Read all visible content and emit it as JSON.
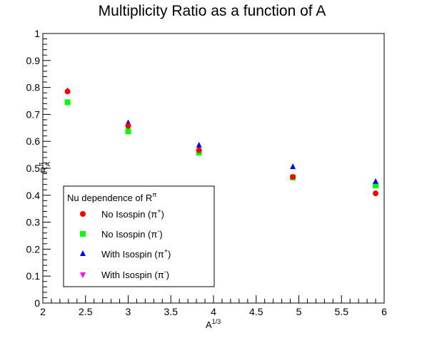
{
  "chart_data": {
    "type": "scatter",
    "title": "Multiplicity Ratio as a function of A",
    "xlabel": {
      "base": "A",
      "sup": "1/3"
    },
    "ylabel": {
      "base": "R",
      "sup": "π",
      "sub": "A"
    },
    "xlim": [
      2,
      6
    ],
    "ylim": [
      0,
      1
    ],
    "xticks": [
      "2",
      "2.5",
      "3",
      "3.5",
      "4",
      "4.5",
      "5",
      "5.5",
      "6"
    ],
    "yticks": [
      "0",
      "0.1",
      "0.2",
      "0.3",
      "0.4",
      "0.5",
      "0.6",
      "0.7",
      "0.8",
      "0.9",
      "1"
    ],
    "grid": false,
    "legend": {
      "position": "bottom-left",
      "header": {
        "base": "Nu dependence of R",
        "sup": "π"
      }
    },
    "series": [
      {
        "name": "No Isospin (π+)",
        "label_base": "No Isospin (π",
        "label_sup": "+",
        "label_end": ")",
        "marker": "circle",
        "color": "#ff0000",
        "x": [
          2.29,
          3.0,
          3.83,
          4.93,
          5.9
        ],
        "y": [
          0.785,
          0.657,
          0.567,
          0.468,
          0.407
        ]
      },
      {
        "name": "No Isospin (π-)",
        "label_base": "No Isospin (π",
        "label_sup": "-",
        "label_end": ")",
        "marker": "square",
        "color": "#00ff00",
        "x": [
          2.29,
          3.0,
          3.83,
          4.93,
          5.9
        ],
        "y": [
          0.745,
          0.637,
          0.558,
          0.466,
          0.436
        ]
      },
      {
        "name": "With Isospin (π+)",
        "label_base": "With Isospin (π",
        "label_sup": "+",
        "label_end": ")",
        "marker": "triangle-up",
        "color": "#0000ff",
        "x": [
          2.29,
          3.0,
          3.83,
          4.93,
          5.9
        ],
        "y": [
          0.787,
          0.668,
          0.585,
          0.505,
          0.45
        ]
      },
      {
        "name": "With Isospin (π-)",
        "label_base": "With Isospin (π",
        "label_sup": "-",
        "label_end": ")",
        "marker": "triangle-down",
        "color": "#ff00ff",
        "x": [],
        "y": []
      }
    ]
  }
}
